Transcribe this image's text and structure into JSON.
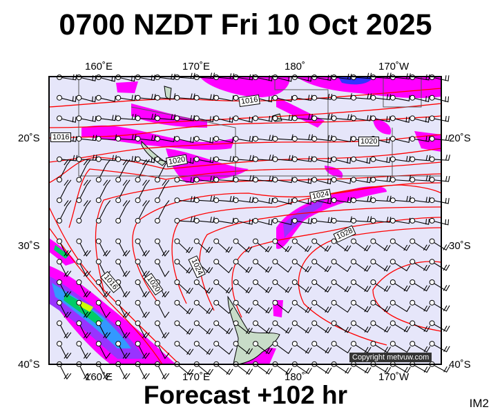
{
  "title": "0700 NZDT Fri 10 Oct 2025",
  "footer": "Forecast +102 hr",
  "corner_label": "IM2",
  "copyright": "Copyright metvuw.com",
  "axes": {
    "top_lon": [
      "160˚E",
      "170˚E",
      "180˚",
      "170˚W"
    ],
    "bottom_lon": [
      "160˚E",
      "170˚E",
      "180˚",
      "170˚W"
    ],
    "left_lat": [
      "20˚S",
      "30˚S",
      "40˚S"
    ],
    "right_lat": [
      "20˚S",
      "30˚S",
      "40˚S"
    ]
  },
  "isobar_labels": [
    "1016",
    "1016",
    "1020",
    "1020",
    "1024",
    "1028",
    "1016",
    "1020",
    "1024"
  ],
  "colors": {
    "background": "#e6e6fa",
    "isobar": "#ff0000",
    "rain_light": "#ff00ff",
    "rain_medium": "#9933ff",
    "rain_heavy": "#3333ff",
    "rain_very_heavy": "#00cc66",
    "rain_extreme": "#ccff00",
    "land": "#c8dcc8"
  }
}
